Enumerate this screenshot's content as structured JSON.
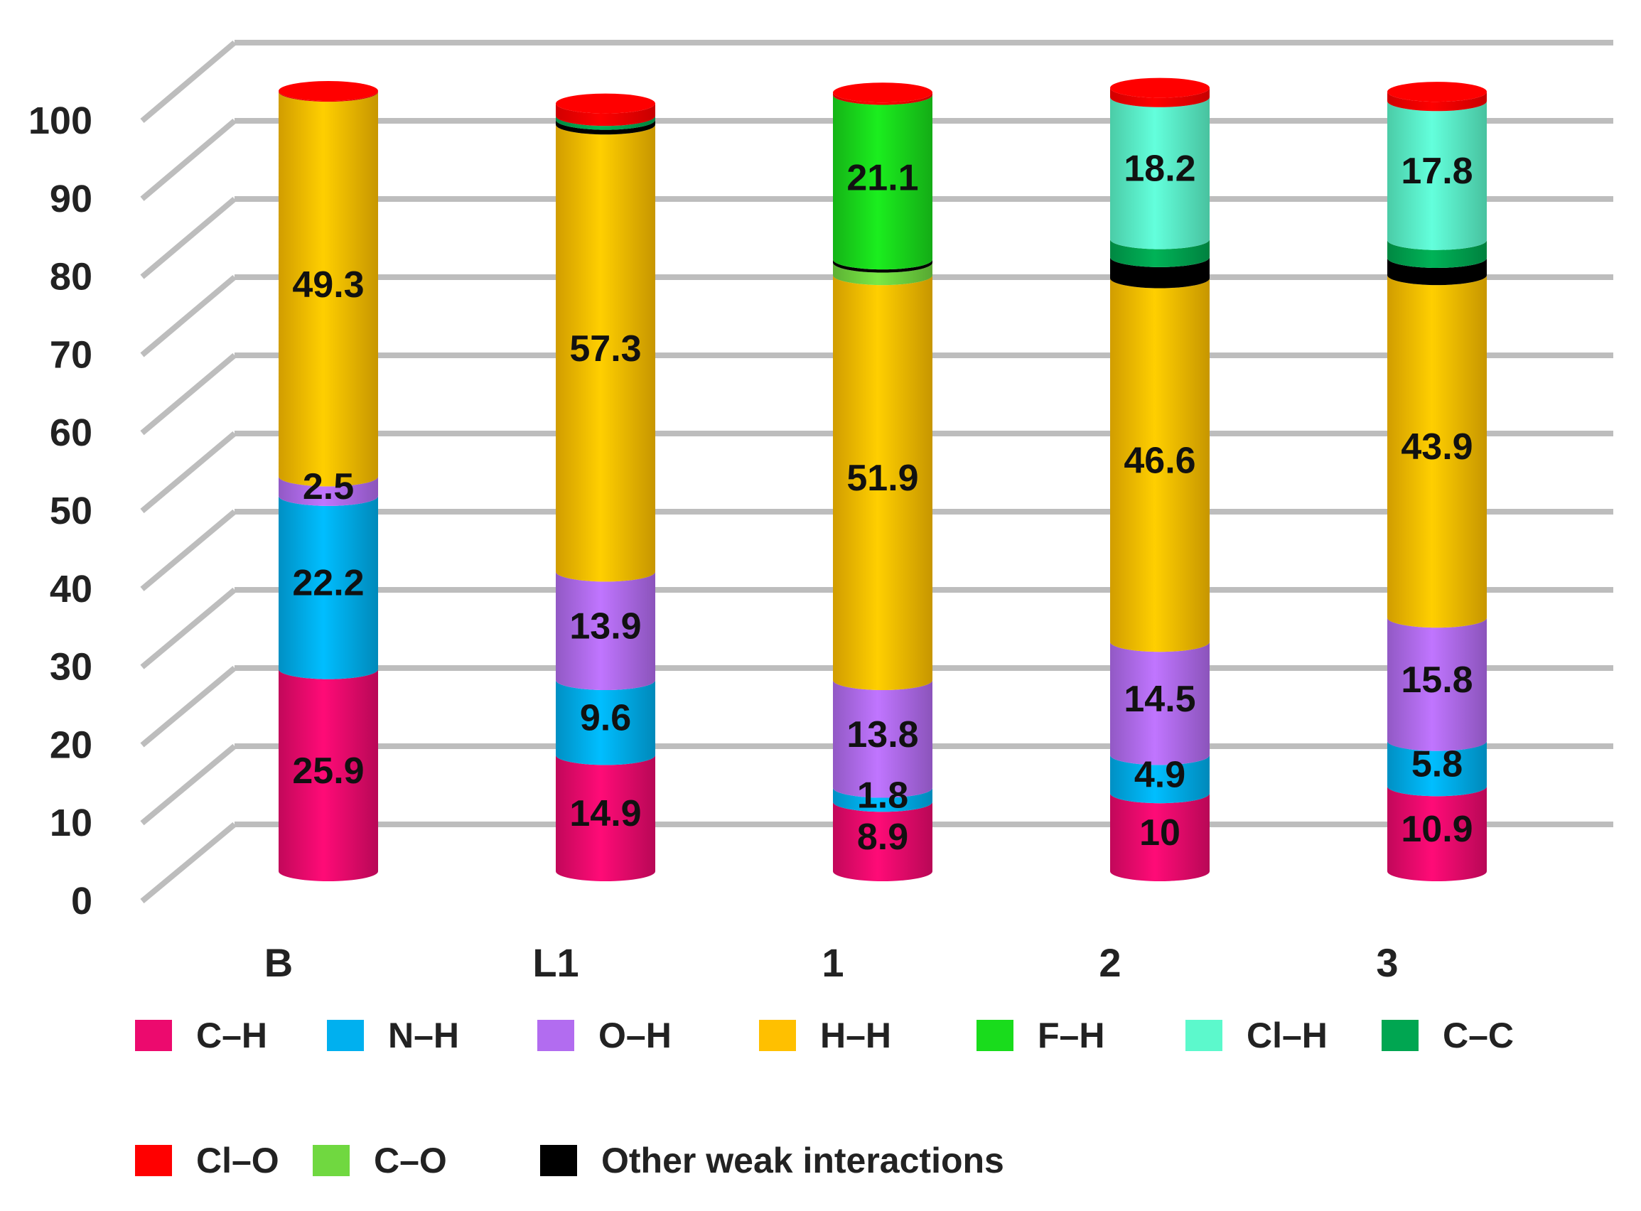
{
  "chart_data": {
    "type": "bar",
    "stacked": true,
    "style": "3d-cylinder",
    "title": "",
    "xlabel": "",
    "ylabel": "",
    "ylim": [
      0,
      100
    ],
    "yticks": [
      0,
      10,
      20,
      30,
      40,
      50,
      60,
      70,
      80,
      90,
      100
    ],
    "grid": true,
    "legend_position": "bottom",
    "categories": [
      "B",
      "L1",
      "1",
      "2",
      "3"
    ],
    "series": [
      {
        "name": "C–H",
        "color": "#ec0a6e",
        "values": [
          25.9,
          14.9,
          8.9,
          10,
          10.9
        ],
        "labels": [
          "25.9",
          "14.9",
          "8.9",
          "10",
          "10.9"
        ]
      },
      {
        "name": "N–H",
        "color": "#00b0ef",
        "values": [
          22.2,
          9.6,
          1.8,
          4.9,
          5.8
        ],
        "labels": [
          "22.2",
          "9.6",
          "1.8",
          "4.9",
          "5.8"
        ]
      },
      {
        "name": "O–H",
        "color": "#b26cf0",
        "values": [
          2.5,
          13.9,
          13.8,
          14.5,
          15.8
        ],
        "labels": [
          "2.5",
          "13.9",
          "13.8",
          "14.5",
          "15.8"
        ]
      },
      {
        "name": "H–H",
        "color": "#ffc000",
        "values": [
          49.3,
          57.3,
          51.9,
          46.6,
          43.9
        ],
        "labels": [
          "49.3",
          "57.3",
          "51.9",
          "46.6",
          "43.9"
        ]
      },
      {
        "name": "F–H",
        "color": "#19dc1c",
        "values": [
          0,
          0,
          21.1,
          0,
          0
        ],
        "labels": [
          "",
          "",
          "21.1",
          "",
          ""
        ]
      },
      {
        "name": "Cl–H",
        "color": "#5cf9cc",
        "values": [
          0,
          0,
          0,
          18.2,
          17.8
        ],
        "labels": [
          "",
          "",
          "",
          "18.2",
          "17.8"
        ]
      },
      {
        "name": "C–C",
        "color": "#00a651",
        "values": [
          0,
          0.5,
          0,
          2.3,
          2.3
        ],
        "labels": [
          "",
          "",
          "",
          "",
          ""
        ]
      },
      {
        "name": "Cl–O",
        "color": "#ff0000",
        "values": [
          0.1,
          1.6,
          0.3,
          1.2,
          1.2
        ],
        "labels": [
          "",
          "",
          "",
          "",
          ""
        ]
      },
      {
        "name": "C–O",
        "color": "#70d840",
        "values": [
          0,
          0,
          1.6,
          0,
          0
        ],
        "labels": [
          "",
          "",
          "",
          "",
          ""
        ]
      },
      {
        "name": "Other weak interactions",
        "color": "#000000",
        "values": [
          0,
          0.6,
          0.4,
          2.7,
          2.2
        ],
        "labels": [
          "",
          "",
          "",
          "",
          ""
        ]
      }
    ],
    "stack_order": [
      "C–H",
      "N–H",
      "O–H",
      "H–H",
      "C–O",
      "Other weak interactions",
      "C–C",
      "F–H",
      "Cl–H",
      "Cl–O"
    ]
  }
}
